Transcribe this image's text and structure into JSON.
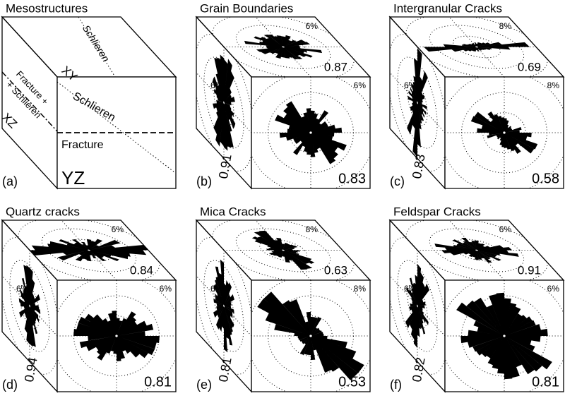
{
  "panels": [
    {
      "label": "(a)",
      "title": "Mesostructures",
      "top": {
        "axis": "XY",
        "trace": "Schlieren"
      },
      "side": {
        "axis": "XZ",
        "trace": [
          "Fracture +",
          "+ Schlieren"
        ]
      },
      "front": {
        "axis": "YZ",
        "traces": [
          "Schlieren",
          "Fracture"
        ]
      }
    },
    {
      "label": "(b)",
      "title": "Grain Boundaries",
      "top": {
        "scale": "6%",
        "value": "0.87"
      },
      "side": {
        "scale": "6%",
        "value": "0.91"
      },
      "front": {
        "scale": "6%",
        "value": "0.83"
      }
    },
    {
      "label": "(c)",
      "title": "Intergranular Cracks",
      "top": {
        "scale": "8%",
        "value": "0.69"
      },
      "side": {
        "scale": "6%",
        "value": "0.83"
      },
      "front": {
        "scale": "8%",
        "value": "0.58"
      }
    },
    {
      "label": "(d)",
      "title": "Quartz cracks",
      "top": {
        "scale": "6%",
        "value": "0.84"
      },
      "side": {
        "scale": "6%",
        "value": "0.94"
      },
      "front": {
        "scale": "6%",
        "value": "0.81"
      }
    },
    {
      "label": "(e)",
      "title": "Mica Cracks",
      "top": {
        "scale": "8%",
        "value": "0.63"
      },
      "side": {
        "scale": "6%",
        "value": "0.81"
      },
      "front": {
        "scale": "8%",
        "value": "0.53"
      }
    },
    {
      "label": "(f)",
      "title": "Feldspar Cracks",
      "top": {
        "scale": "6%",
        "value": "0.91"
      },
      "side": {
        "scale": "6%",
        "value": "0.82"
      },
      "front": {
        "scale": "6%",
        "value": "0.81"
      }
    }
  ]
}
